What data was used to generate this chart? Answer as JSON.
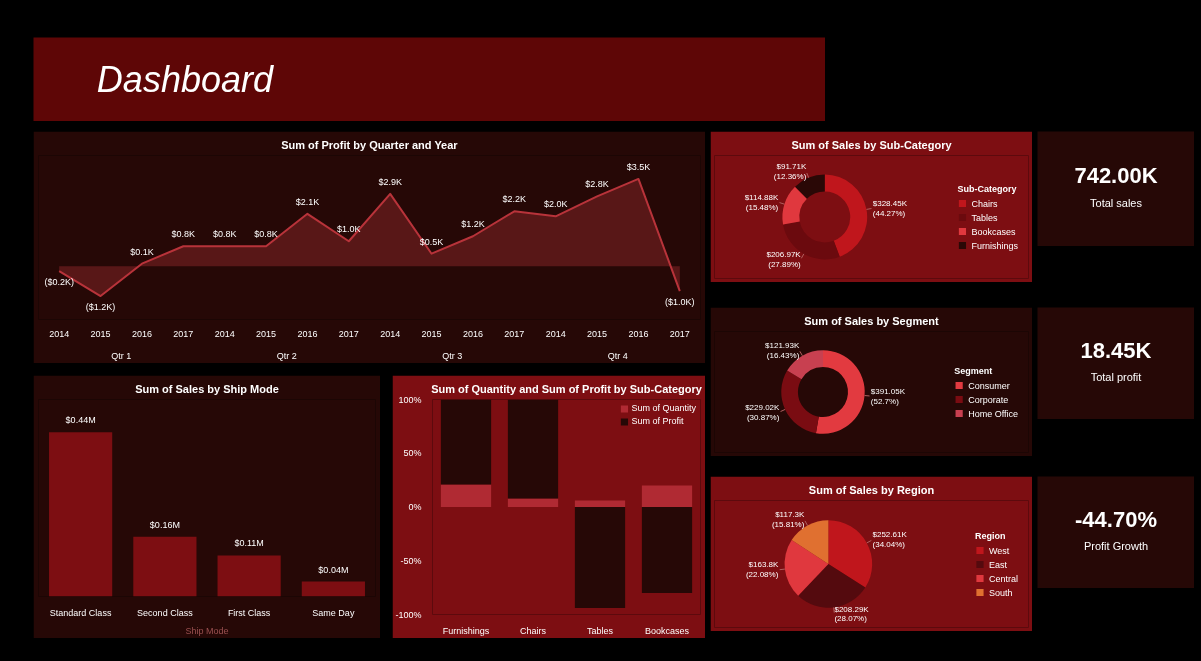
{
  "chart_data": [
    {
      "type": "other",
      "title": "Dashboard"
    },
    {
      "type": "area",
      "title": "Sum of Profit by Quarter and Year",
      "categories": [
        "2014",
        "2015",
        "2016",
        "2017",
        "2014",
        "2015",
        "2016",
        "2017",
        "2014",
        "2015",
        "2016",
        "2017",
        "2014",
        "2015",
        "2016",
        "2017"
      ],
      "values": [
        -0.2,
        -1.2,
        0.1,
        0.8,
        0.8,
        0.8,
        2.1,
        1.0,
        2.9,
        0.5,
        1.2,
        2.2,
        2.0,
        2.8,
        3.5,
        -1.0
      ],
      "value_labels": [
        "($0.2K)",
        "($1.2K)",
        "$0.1K",
        "$0.8K",
        "$0.8K",
        "$0.8K",
        "$2.1K",
        "$1.0K",
        "$2.9K",
        "$0.5K",
        "$1.2K",
        "$2.2K",
        "$2.0K",
        "$2.8K",
        "$3.5K",
        "($1.0K)"
      ],
      "color": "#b8333a",
      "annotations": [
        "Qtr 1",
        "Qtr 2",
        "Qtr 3",
        "Qtr 4"
      ],
      "tick_labels": "x"
    },
    {
      "type": "bar",
      "title": "Sum of Sales by Ship Mode",
      "xlabel": "Ship Mode",
      "categories": [
        "Standard Class",
        "Second Class",
        "First Class",
        "Same Day"
      ],
      "values": [
        0.44,
        0.16,
        0.11,
        0.04
      ],
      "value_labels": [
        "$0.44M",
        "$0.16M",
        "$0.11M",
        "$0.04M"
      ],
      "color": "#7d0e12",
      "tick_labels": "x"
    },
    {
      "type": "bar",
      "title": "Sum of Quantity and Sum of Profit by Sub-Category",
      "categories": [
        "Furnishings",
        "Chairs",
        "Tables",
        "Bookcases"
      ],
      "stacked": true,
      "legend": "top right",
      "ylim": [
        -100,
        100
      ],
      "yticks": [
        {
          "value": 100,
          "label": "100%"
        },
        {
          "value": 50,
          "label": "50%"
        },
        {
          "value": 0,
          "label": "0%"
        },
        {
          "value": -50,
          "label": "-50%"
        },
        {
          "value": -100,
          "label": "-100%"
        }
      ],
      "series": [
        {
          "name": "Sum of Quantity",
          "color": "#b02a33",
          "values": [
            21,
            8,
            6,
            20
          ]
        },
        {
          "name": "Sum of Profit",
          "color": "#260806",
          "values": [
            79,
            92,
            -94,
            -80
          ]
        }
      ]
    },
    {
      "type": "donut",
      "title": "Sum of Sales by Sub-Category",
      "legend": "right",
      "legend_title": "Sub-Category",
      "categories": [
        "Chairs",
        "Tables",
        "Bookcases",
        "Furnishings"
      ],
      "values": [
        44.27,
        27.89,
        15.48,
        12.36
      ],
      "value_labels": [
        "$328.45K (44.27%)",
        "$206.97K (27.89%)",
        "$114.88K (15.48%)",
        "$91.71K (12.36%)"
      ],
      "colors": [
        "#c0161c",
        "#6b0a0e",
        "#e0383e",
        "#2a0806"
      ]
    },
    {
      "type": "donut",
      "title": "Sum of Sales by Segment",
      "legend": "right",
      "legend_title": "Segment",
      "categories": [
        "Consumer",
        "Corporate",
        "Home Office"
      ],
      "values": [
        52.7,
        30.87,
        16.43
      ],
      "value_labels": [
        "$391.05K (52.7%)",
        "$229.02K (30.87%)",
        "$121.93K (16.43%)"
      ],
      "colors": [
        "#e23a40",
        "#7a0c12",
        "#c84050"
      ]
    },
    {
      "type": "pie",
      "title": "Sum of Sales by Region",
      "legend": "right",
      "legend_title": "Region",
      "categories": [
        "West",
        "East",
        "Central",
        "South"
      ],
      "values": [
        34.04,
        28.07,
        22.08,
        15.81
      ],
      "value_labels": [
        "$252.61K (34.04%)",
        "$208.29K (28.07%)",
        "$163.8K (22.08%)",
        "$117.3K (15.81%)"
      ],
      "colors": [
        "#c0161c",
        "#540a0e",
        "#e0383e",
        "#e07030"
      ]
    },
    {
      "type": "other",
      "title": "742.00K",
      "subtitle": "Total sales"
    },
    {
      "type": "other",
      "title": "18.45K",
      "subtitle": "Total profit"
    },
    {
      "type": "other",
      "title": "-44.70%",
      "subtitle": "Profit Growth"
    }
  ]
}
